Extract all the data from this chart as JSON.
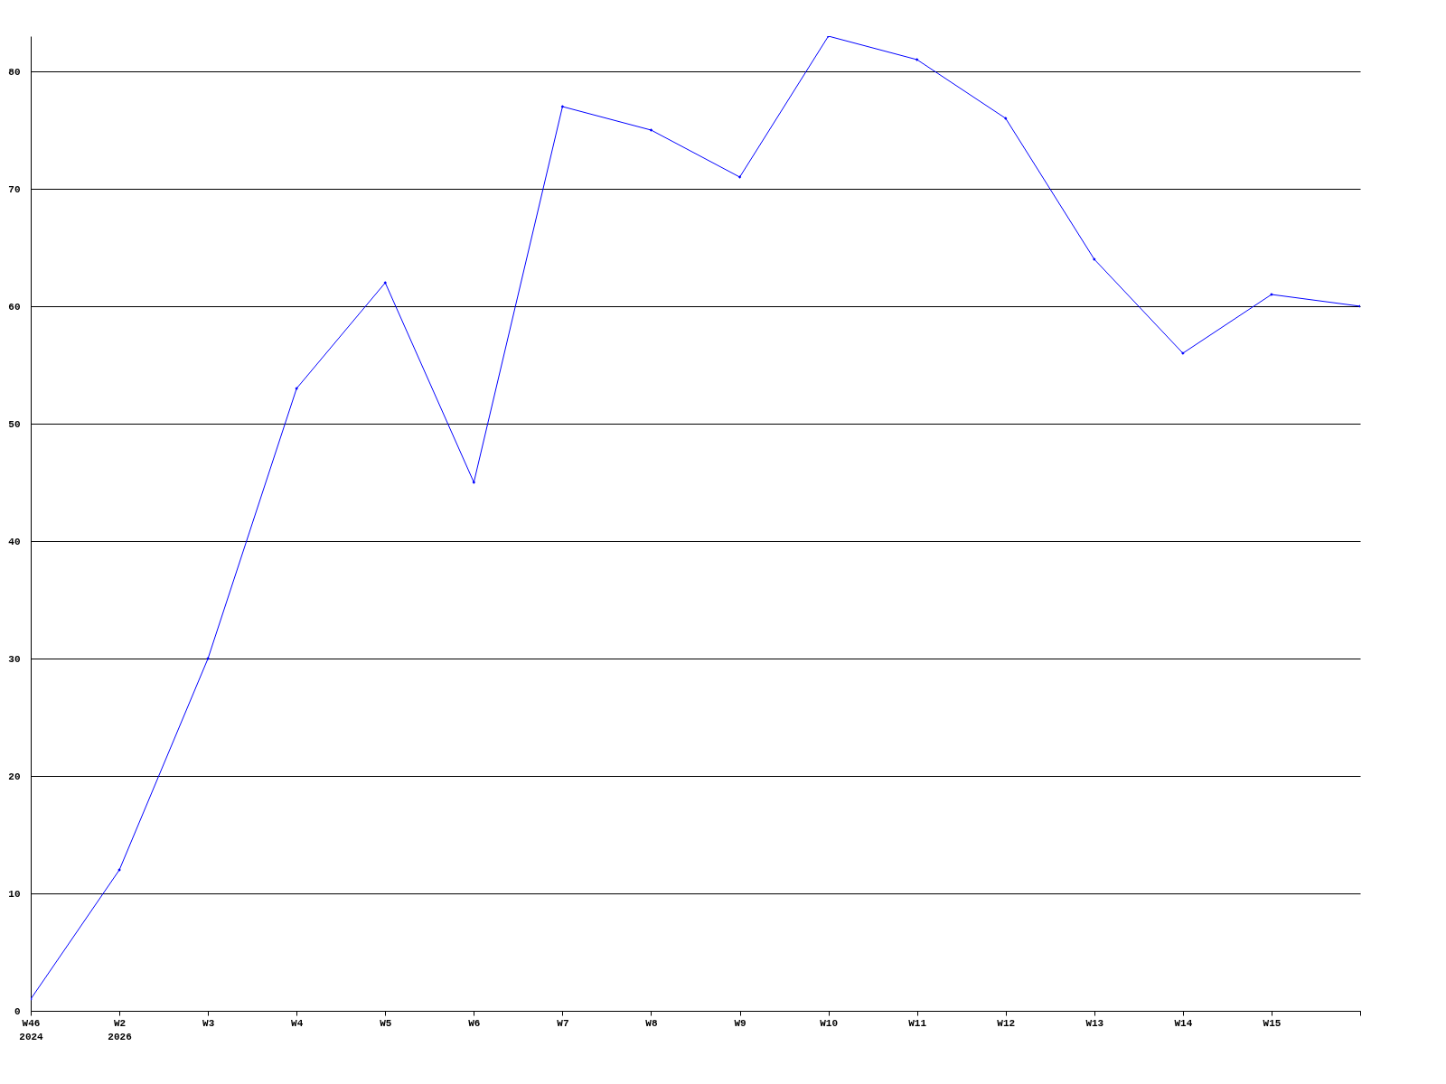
{
  "chart_data": {
    "type": "line",
    "categories": [
      "W46\n2024",
      "W2\n2026",
      "W3",
      "W4",
      "W5",
      "W6",
      "W7",
      "W8",
      "W9",
      "W10",
      "W11",
      "W12",
      "W13",
      "W14",
      "W15",
      null
    ],
    "series": [
      {
        "color": "#0000ff",
        "values": [
          1,
          12,
          30,
          53,
          62,
          45,
          77,
          75,
          71,
          83,
          81,
          76,
          64,
          56,
          61,
          60
        ]
      }
    ],
    "ylim": [
      0,
      83
    ],
    "yticks": [
      0,
      10,
      20,
      30,
      40,
      50,
      60,
      70,
      80
    ],
    "grid": "y",
    "legend": false,
    "marker": "diamond",
    "line_style": "solid"
  }
}
